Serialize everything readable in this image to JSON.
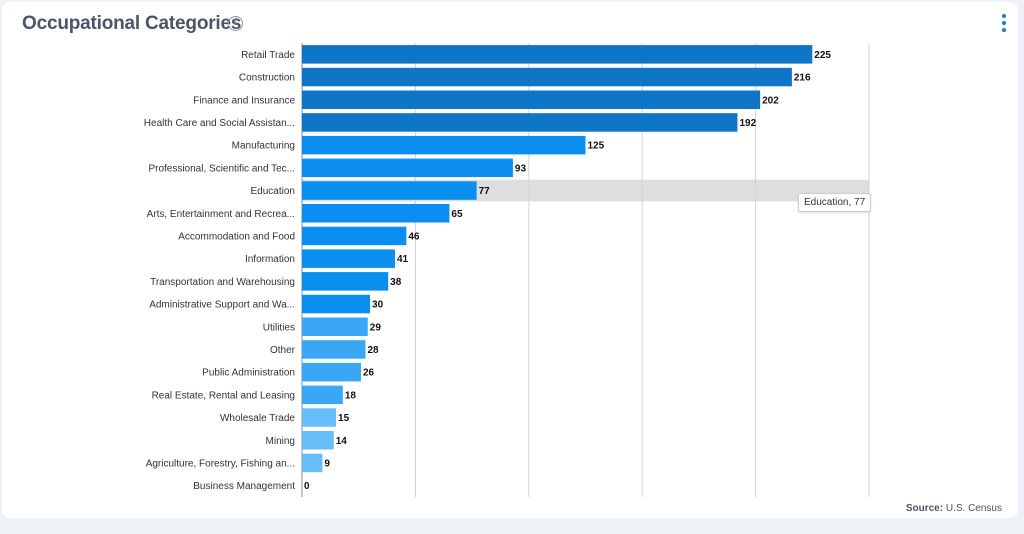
{
  "header": {
    "title": "Occupational Categories",
    "info_icon": "info-icon",
    "menu_icon": "more-vertical-icon"
  },
  "footer": {
    "source_label": "Source:",
    "source_value": "U.S. Census"
  },
  "tooltip": {
    "text": "Education, 77",
    "category": "Education"
  },
  "colors": {
    "dark_blue": "#0f75c7",
    "mid_blue": "#0a8ff0",
    "light_blue": "#3aa7f5",
    "pale_blue": "#66bdf8",
    "hover_band": "#dedede",
    "gridline": "#cfd4da"
  },
  "chart_data": {
    "type": "bar",
    "orientation": "horizontal",
    "categories": [
      "Retail Trade",
      "Construction",
      "Finance and Insurance",
      "Health Care and Social Assistan...",
      "Manufacturing",
      "Professional, Scientific and Tec...",
      "Education",
      "Arts, Entertainment and Recrea...",
      "Accommodation and Food",
      "Information",
      "Transportation and Warehousing",
      "Administrative Support and Wa...",
      "Utilities",
      "Other",
      "Public Administration",
      "Real Estate, Rental and Leasing",
      "Wholesale Trade",
      "Mining",
      "Agriculture, Forestry, Fishing an...",
      "Business Management"
    ],
    "values": [
      225,
      216,
      202,
      192,
      125,
      93,
      77,
      65,
      46,
      41,
      38,
      30,
      29,
      28,
      26,
      18,
      15,
      14,
      9,
      0
    ],
    "xlim": [
      0,
      250
    ],
    "grid": true,
    "data_labels": true,
    "highlighted_category": "Education"
  }
}
